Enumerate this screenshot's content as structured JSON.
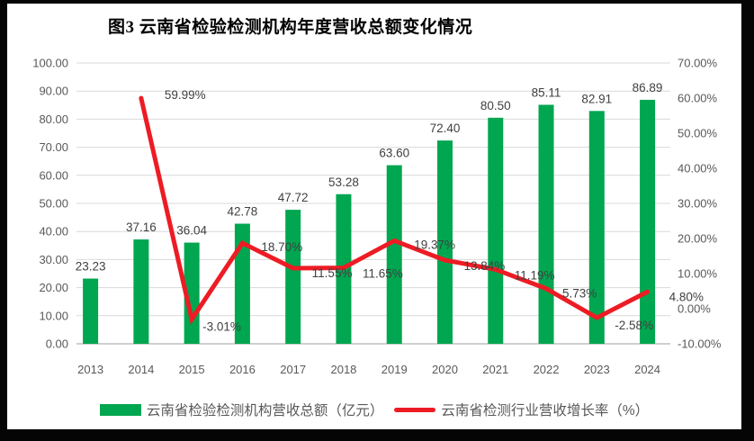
{
  "title": {
    "text": "图3 云南省检验检测机构年度营收总额变化情况"
  },
  "chart_data": {
    "type": "bar+line",
    "title": "图3 云南省检验检测机构年度营收总额变化情况",
    "categories": [
      "2013",
      "2014",
      "2015",
      "2016",
      "2017",
      "2018",
      "2019",
      "2020",
      "2021",
      "2022",
      "2023",
      "2024"
    ],
    "series": [
      {
        "name": "云南省检验检测机构营收总额（亿元）",
        "type": "bar",
        "axis": "left",
        "color": "#00A650",
        "values": [
          23.23,
          37.16,
          36.04,
          42.78,
          47.72,
          53.28,
          63.6,
          72.4,
          80.5,
          85.11,
          82.91,
          86.89
        ],
        "data_labels": [
          "23.23",
          "37.16",
          "36.04",
          "42.78",
          "47.72",
          "53.28",
          "63.60",
          "72.40",
          "80.50",
          "85.11",
          "82.91",
          "86.89"
        ]
      },
      {
        "name": "云南省检测行业营收增长率（%）",
        "type": "line",
        "axis": "right",
        "color": "#ED1C24",
        "values": [
          null,
          59.99,
          -3.01,
          18.7,
          11.55,
          11.65,
          19.37,
          13.84,
          11.19,
          5.73,
          -2.58,
          4.8
        ],
        "data_labels": [
          null,
          "59.99%",
          "-3.01%",
          "18.70%",
          "11.55%",
          "11.65%",
          "19.37%",
          "13.84%",
          "11.19%",
          "5.73%",
          "-2.58%",
          "4.80%"
        ],
        "label_offsets": [
          null,
          [
            26,
            1
          ],
          [
            12,
            13
          ],
          [
            21,
            9
          ],
          [
            21,
            10
          ],
          [
            21,
            11
          ],
          [
            22,
            9
          ],
          [
            21,
            11
          ],
          [
            21,
            11
          ],
          [
            18,
            10
          ],
          [
            20,
            13
          ],
          [
            24,
            10
          ]
        ]
      }
    ],
    "axes": {
      "left": {
        "min": 0,
        "max": 100,
        "step": 10,
        "tick_labels_top_to_bottom": [
          "100.00",
          "90.00",
          "80.00",
          "70.00",
          "60.00",
          "50.00",
          "40.00",
          "30.00",
          "20.00",
          "10.00",
          "0.00"
        ]
      },
      "right": {
        "min": -10,
        "max": 70,
        "step": 10,
        "tick_labels_top_to_bottom": [
          "70.00%",
          "60.00%",
          "50.00%",
          "40.00%",
          "30.00%",
          "20.00%",
          "10.00%",
          "0.00%",
          "-10.00%"
        ]
      }
    },
    "grid": true,
    "legend_position": "bottom",
    "colors": {
      "gridline": "#D9D9D9",
      "axis_line": "#BFBFBF",
      "tick_text": "#595959",
      "data_label_text": "#404040"
    }
  },
  "legend": {
    "bar_label": "云南省检验检测机构营收总额（亿元）",
    "line_label": "云南省检测行业营收增长率（%）"
  }
}
